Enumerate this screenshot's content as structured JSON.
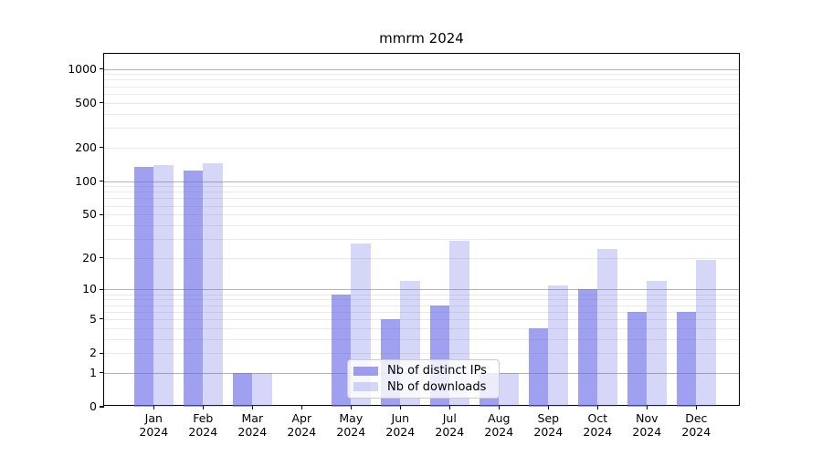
{
  "chart_data": {
    "type": "bar",
    "title": "mmrm 2024",
    "categories": [
      "Jan 2024",
      "Feb 2024",
      "Mar 2024",
      "Apr 2024",
      "May 2024",
      "Jun 2024",
      "Jul 2024",
      "Aug 2024",
      "Sep 2024",
      "Oct 2024",
      "Nov 2024",
      "Dec 2024"
    ],
    "series": [
      {
        "name": "Nb of distinct IPs",
        "values": [
          133,
          125,
          1,
          0,
          9,
          5,
          7,
          1,
          4,
          10,
          6,
          6
        ],
        "color": "rgba(105,105,231,0.63)"
      },
      {
        "name": "Nb of downloads",
        "values": [
          140,
          145,
          1,
          0,
          27,
          12,
          29,
          1,
          11,
          24,
          12,
          19
        ],
        "color": "rgba(105,105,231,0.27)"
      }
    ],
    "yticks": [
      0,
      1,
      2,
      5,
      10,
      20,
      50,
      100,
      200,
      500,
      1000
    ],
    "y_scale": "log10(1+x)",
    "ylim": [
      0,
      1360
    ],
    "xlabel": "",
    "ylabel": "",
    "grid": "horizontal, log major and minor lines",
    "legend_position": "lower center"
  }
}
